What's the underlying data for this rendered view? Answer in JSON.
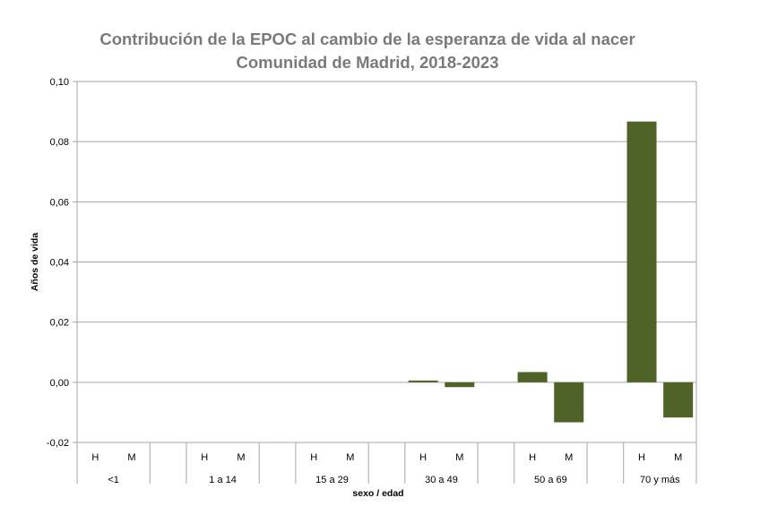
{
  "chart_data": {
    "type": "bar",
    "title": "Contribución de la EPOC al cambio de la esperanza de vida al nacer",
    "subtitle": "Comunidad de Madrid, 2018-2023",
    "xlabel": "sexo / edad",
    "ylabel": "Años de vida",
    "ylim": [
      -0.02,
      0.1
    ],
    "yticks": [
      -0.02,
      0.0,
      0.02,
      0.04,
      0.06,
      0.08,
      0.1
    ],
    "ytick_labels": [
      "-0,02",
      "0,00",
      "0,02",
      "0,04",
      "0,06",
      "0,08",
      "0,10"
    ],
    "grid": true,
    "bar_color": "#4f6228",
    "groups": [
      {
        "label": "<1",
        "sexes": [
          "H",
          "M"
        ],
        "values": [
          0,
          0
        ]
      },
      {
        "label": "1 a 14",
        "sexes": [
          "H",
          "M"
        ],
        "values": [
          0,
          0
        ]
      },
      {
        "label": "15 a 29",
        "sexes": [
          "H",
          "M"
        ],
        "values": [
          0,
          0
        ]
      },
      {
        "label": "30 a 49",
        "sexes": [
          "H",
          "M"
        ],
        "values": [
          0.0006,
          -0.0016
        ]
      },
      {
        "label": "50 a 69",
        "sexes": [
          "H",
          "M"
        ],
        "values": [
          0.0034,
          -0.0133
        ]
      },
      {
        "label": "70 y más",
        "sexes": [
          "H",
          "M"
        ],
        "values": [
          0.0867,
          -0.0117
        ]
      }
    ]
  }
}
